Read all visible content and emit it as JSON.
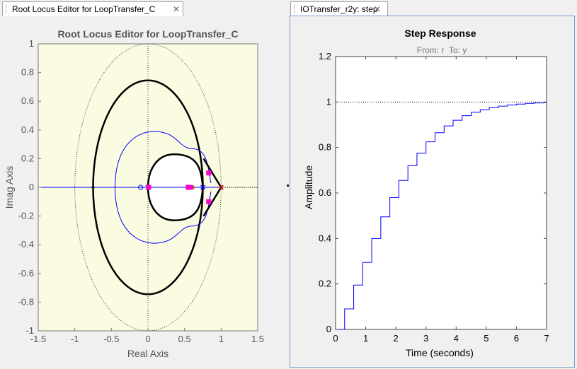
{
  "tabs": [
    {
      "label": "Root Locus Editor for LoopTransfer_C"
    },
    {
      "label": "IOTransfer_r2y: step"
    }
  ],
  "left_plot": {
    "title": "Root Locus Editor for LoopTransfer_C",
    "xlabel": "Real Axis",
    "ylabel": "Imag Axis",
    "xticks": [
      "-1.5",
      "-1",
      "-0.5",
      "0",
      "0.5",
      "1",
      "1.5"
    ],
    "yticks": [
      "1",
      "0.8",
      "0.6",
      "0.4",
      "0.2",
      "0",
      "-0.2",
      "-0.4",
      "-0.6",
      "-0.8",
      "-1"
    ],
    "colors": {
      "background": "#fbfbe2",
      "locus_main": "#000000",
      "locus_secondary": "#0000ff",
      "closed_loop_poles": "#ff00cc"
    }
  },
  "right_plot": {
    "title": "Step Response",
    "subtitle": "From: r  To: y",
    "xlabel": "Time (seconds)",
    "ylabel": "Amplitude",
    "xticks": [
      "0",
      "1",
      "2",
      "3",
      "4",
      "5",
      "6",
      "7"
    ],
    "yticks": [
      "1.2",
      "1",
      "0.8",
      "0.6",
      "0.4",
      "0.2",
      "0"
    ]
  },
  "chart_data": [
    {
      "type": "line",
      "title": "Root Locus Editor for LoopTransfer_C",
      "xlabel": "Real Axis",
      "ylabel": "Imag Axis",
      "xlim": [
        -1.5,
        1.5
      ],
      "ylim": [
        -1,
        1
      ],
      "open_loop_poles": [
        [
          0,
          0
        ],
        [
          0.75,
          0
        ],
        [
          1,
          0
        ]
      ],
      "open_loop_zeros": [
        [
          -0.1,
          0
        ],
        [
          0.58,
          0
        ],
        [
          0.6,
          0
        ]
      ],
      "closed_loop_poles": [
        [
          0.83,
          0.1
        ],
        [
          0.83,
          -0.1
        ],
        [
          0.55,
          0
        ],
        [
          0.57,
          0
        ],
        [
          0.01,
          0
        ]
      ]
    },
    {
      "type": "line",
      "title": "Step Response",
      "subtitle": "From: r  To: y",
      "xlabel": "Time (seconds)",
      "ylabel": "Amplitude",
      "xlim": [
        0,
        7
      ],
      "ylim": [
        0,
        1.2
      ],
      "reference_line": 1,
      "sample_time": 0.3,
      "series": [
        {
          "values": [
            0,
            0.09,
            0.195,
            0.295,
            0.4,
            0.495,
            0.58,
            0.655,
            0.72,
            0.775,
            0.825,
            0.865,
            0.895,
            0.92,
            0.94,
            0.955,
            0.966,
            0.975,
            0.982,
            0.987,
            0.991,
            0.994,
            0.996,
            0.998,
            1.0
          ]
        }
      ]
    }
  ]
}
